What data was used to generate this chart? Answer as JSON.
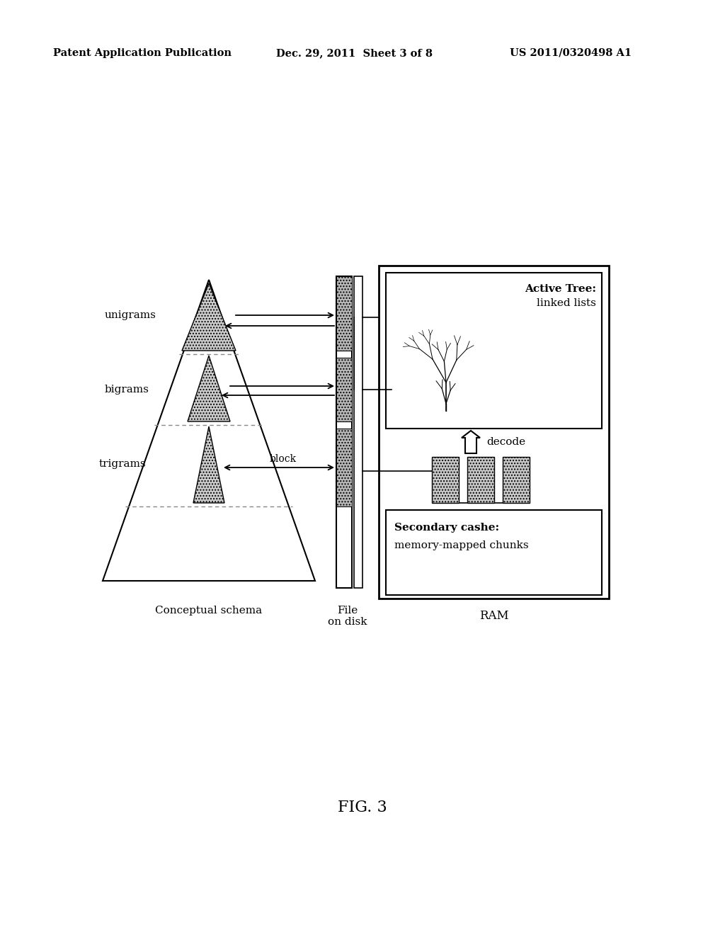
{
  "bg_color": "#ffffff",
  "header_left": "Patent Application Publication",
  "header_mid": "Dec. 29, 2011  Sheet 3 of 8",
  "header_right": "US 2011/0320498 A1",
  "fig_label": "FIG. 3",
  "label_unigrams": "unigrams",
  "label_bigrams": "bigrams",
  "label_trigrams": "trigrams",
  "label_block": "block",
  "label_conceptual": "Conceptual schema",
  "label_file": "File\non disk",
  "label_ram": "RAM",
  "label_active_tree": "Active Tree:",
  "label_linked_lists": "linked lists",
  "label_decode": "decode",
  "label_secondary": "Secondary cashe:",
  "label_memory_mapped": "memory-mapped chunks"
}
